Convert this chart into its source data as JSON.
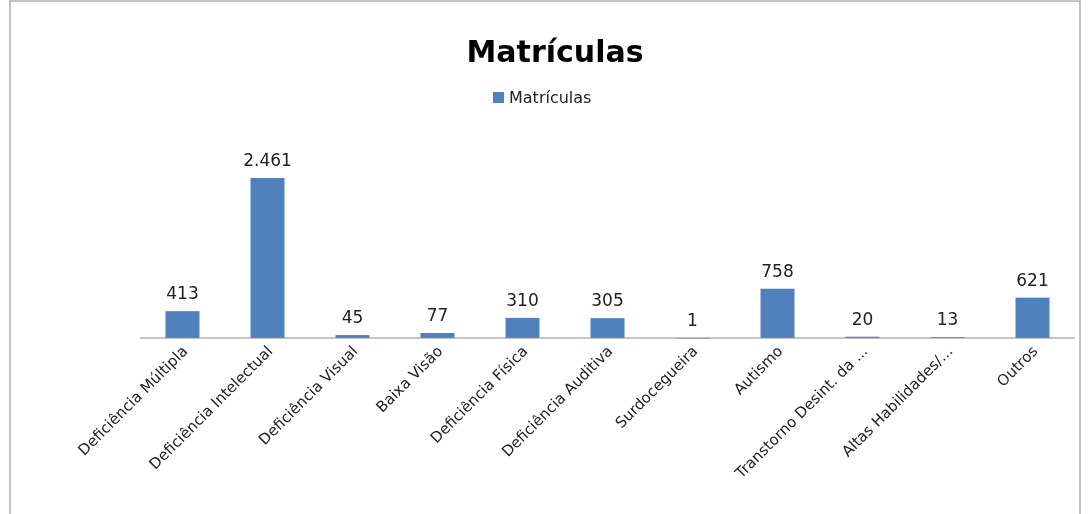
{
  "chart_data": {
    "type": "bar",
    "title": "Matrículas",
    "categories": [
      "Deficiência Múltipla",
      "Deficiência Intelectual",
      "Deficiência Visual",
      "Baixa Visão",
      "Deficiência Física",
      "Deficiência Auditiva",
      "Surdocegueira",
      "Autismo",
      "Transtorno Desint. da ...",
      "Altas Habilidades/...",
      "Outros"
    ],
    "series": [
      {
        "name": "Matrículas",
        "color": "#4f81bd",
        "values": [
          413,
          2461,
          45,
          77,
          310,
          305,
          1,
          758,
          20,
          13,
          621
        ],
        "value_labels": [
          "413",
          "2.461",
          "45",
          "77",
          "310",
          "305",
          "1",
          "758",
          "20",
          "13",
          "621"
        ]
      }
    ],
    "legend": "top"
  }
}
